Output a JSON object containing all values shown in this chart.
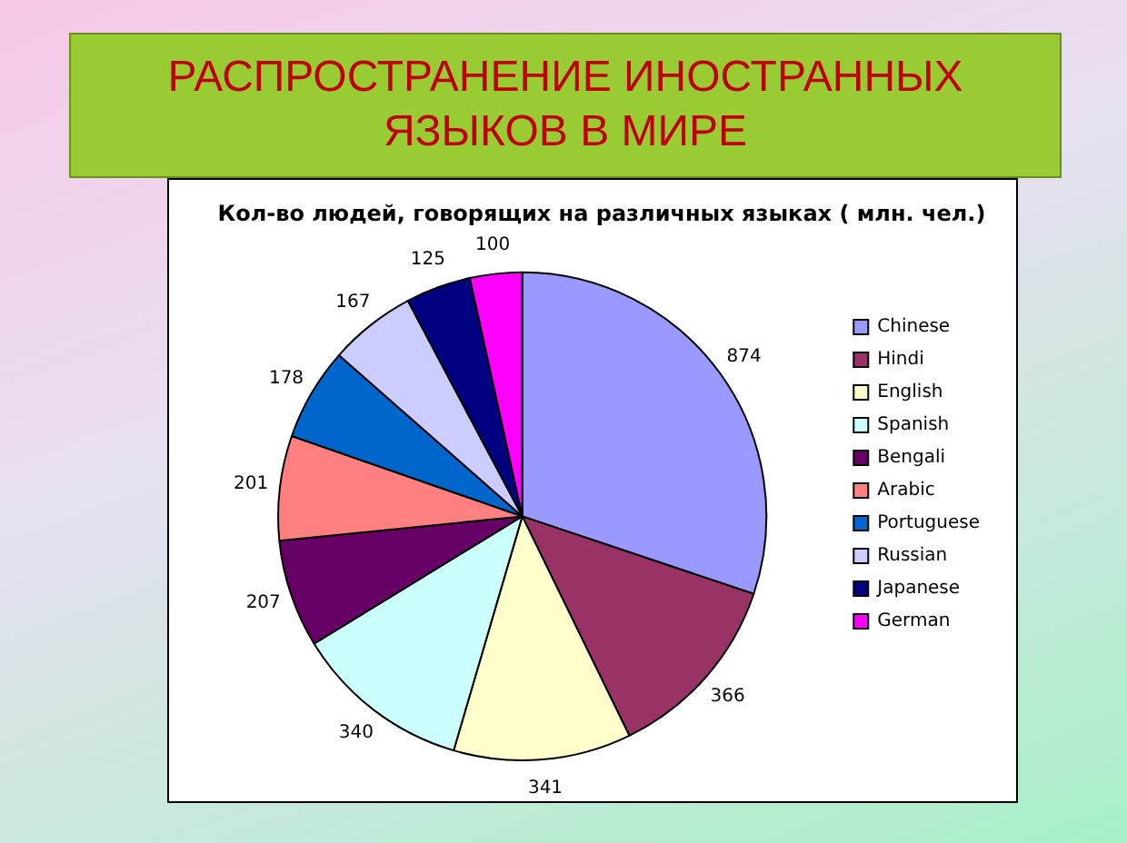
{
  "chart_data": {
    "type": "pie",
    "title": "РАСПРОСТРАНЕНИЕ ИНОСТРАННЫХ ЯЗЫКОВ В МИРЕ",
    "subtitle": "Кол-во людей, говорящих на различных языках ( млн. чел.)",
    "categories": [
      "Chinese",
      "Hindi",
      "English",
      "Spanish",
      "Bengali",
      "Arabic",
      "Portuguese",
      "Russian",
      "Japanese",
      "German"
    ],
    "values": [
      874,
      366,
      341,
      340,
      207,
      201,
      178,
      167,
      125,
      100
    ],
    "colors": [
      "#9999ff",
      "#993366",
      "#ffffcc",
      "#ccffff",
      "#660066",
      "#ff8080",
      "#0066cc",
      "#ccccff",
      "#000080",
      "#ff00ff"
    ],
    "data_labels": true,
    "legend": "right"
  }
}
